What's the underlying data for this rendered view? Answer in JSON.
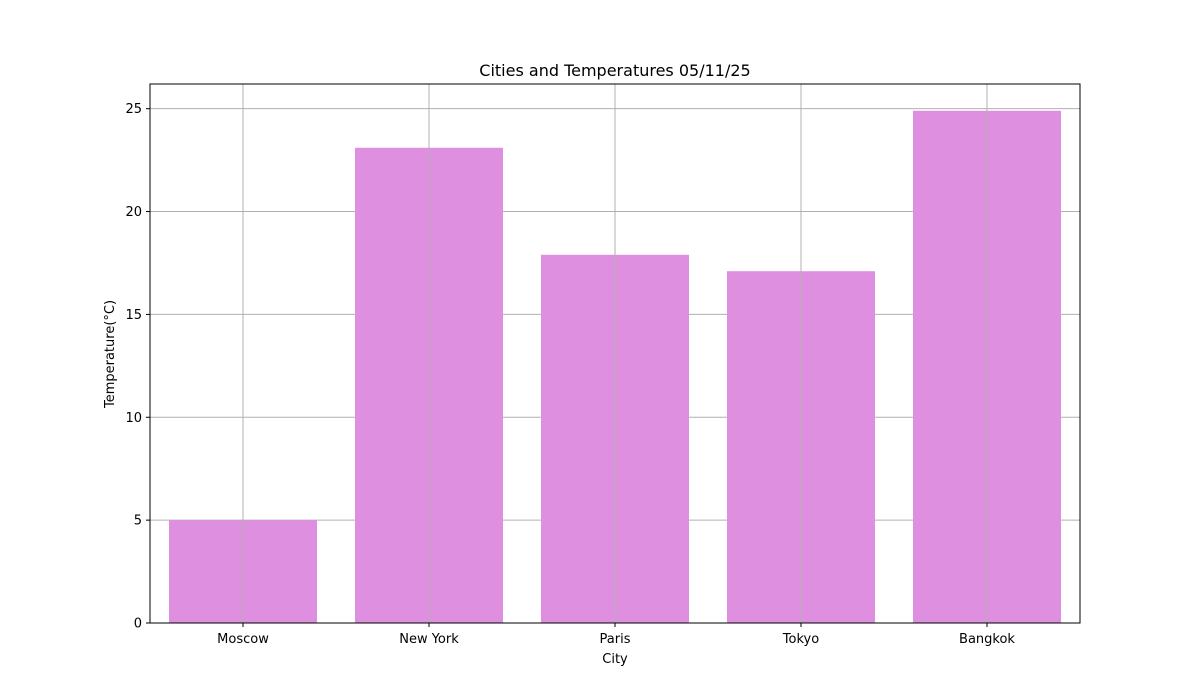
{
  "chart_data": {
    "type": "bar",
    "title": "Cities and Temperatures 05/11/25",
    "xlabel": "City",
    "ylabel": "Temperature(°C)",
    "categories": [
      "Moscow",
      "New York",
      "Paris",
      "Tokyo",
      "Bangkok"
    ],
    "values": [
      5.0,
      23.1,
      17.9,
      17.1,
      24.9
    ],
    "ylim": [
      0,
      26.2
    ],
    "yticks": [
      0,
      5,
      10,
      15,
      20,
      25
    ],
    "grid": true,
    "bar_color": "#df8fdf",
    "grid_color": "#b0b0b0"
  }
}
